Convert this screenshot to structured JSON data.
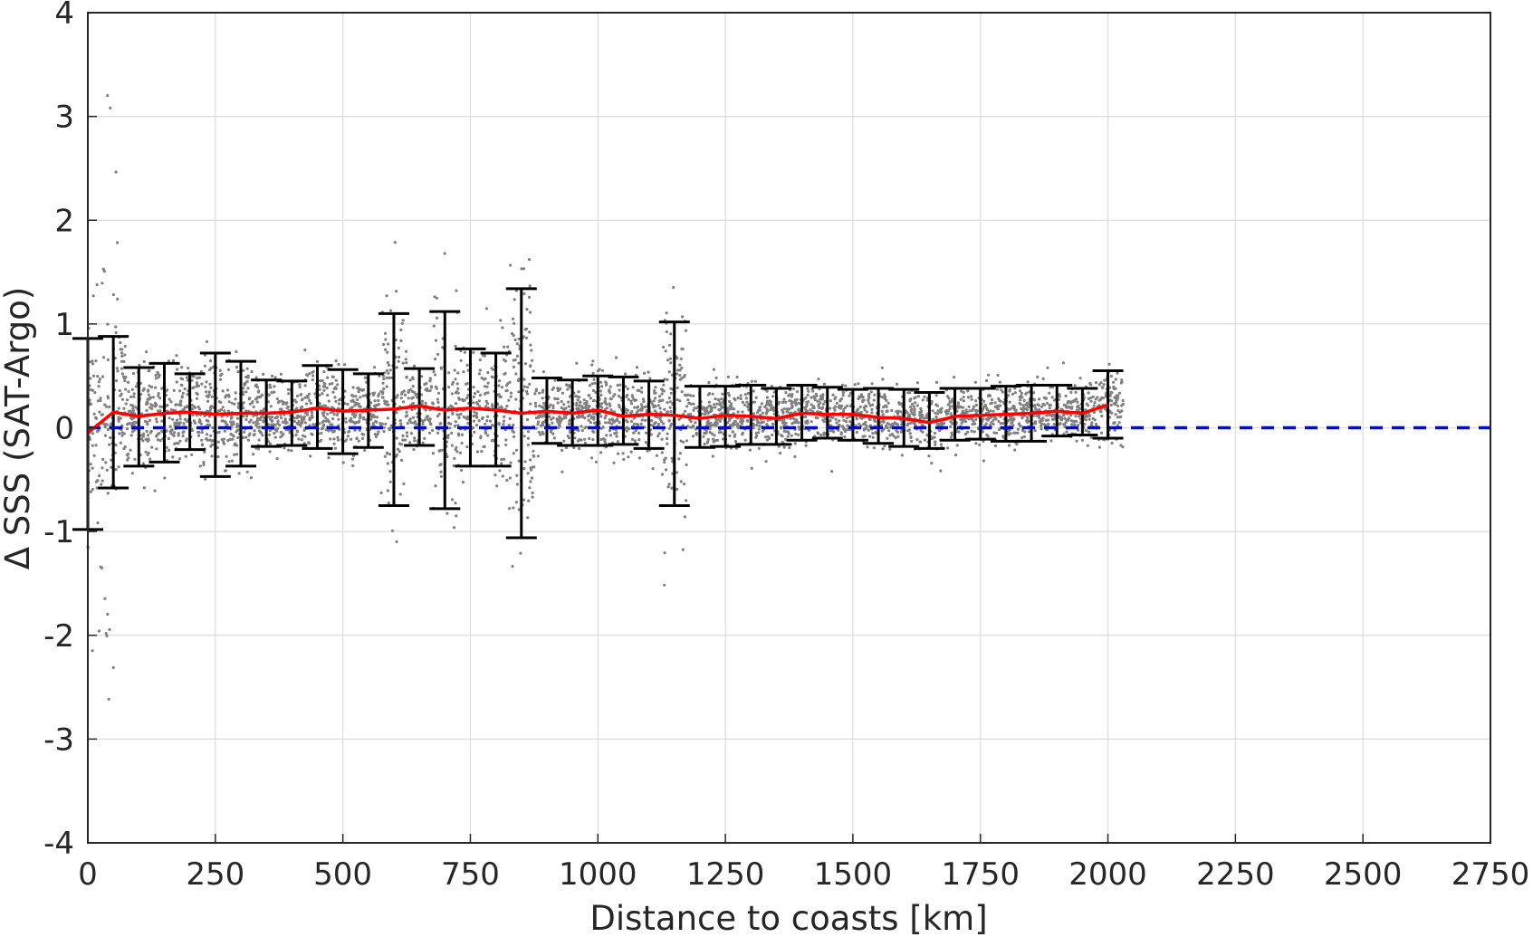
{
  "chart_data": {
    "type": "scatter",
    "xlabel": "Distance to coasts [km]",
    "ylabel": "Δ SSS (SAT-Argo)",
    "xlim": [
      0,
      2750
    ],
    "ylim": [
      -4,
      4
    ],
    "xticks": [
      0,
      250,
      500,
      750,
      1000,
      1250,
      1500,
      1750,
      2000,
      2250,
      2500,
      2750
    ],
    "yticks": [
      -4,
      -3,
      -2,
      -1,
      0,
      1,
      2,
      3,
      4
    ],
    "grid": true,
    "colors": {
      "scatter": "#808080",
      "mean_line": "#ff0000",
      "zero_line": "#0000ff",
      "error_bars": "#000000",
      "grid": "#dcdcdc",
      "axes": "#262626"
    },
    "reference_line": {
      "y": 0,
      "style": "dashed"
    },
    "bins": {
      "x": [
        0,
        50,
        100,
        150,
        200,
        250,
        300,
        350,
        400,
        450,
        500,
        550,
        600,
        650,
        700,
        750,
        800,
        850,
        900,
        950,
        1000,
        1050,
        1100,
        1150,
        1200,
        1250,
        1300,
        1350,
        1400,
        1450,
        1500,
        1550,
        1600,
        1650,
        1700,
        1750,
        1800,
        1850,
        1900,
        1950,
        2000
      ],
      "mean": [
        -0.05,
        0.15,
        0.11,
        0.14,
        0.15,
        0.13,
        0.14,
        0.14,
        0.15,
        0.19,
        0.16,
        0.17,
        0.18,
        0.21,
        0.17,
        0.19,
        0.17,
        0.14,
        0.16,
        0.14,
        0.17,
        0.11,
        0.13,
        0.12,
        0.09,
        0.12,
        0.11,
        0.09,
        0.14,
        0.13,
        0.13,
        0.1,
        0.09,
        0.05,
        0.11,
        0.12,
        0.13,
        0.14,
        0.16,
        0.14,
        0.22
      ],
      "upper": [
        0.86,
        0.88,
        0.58,
        0.62,
        0.52,
        0.72,
        0.64,
        0.46,
        0.45,
        0.6,
        0.56,
        0.52,
        1.1,
        0.57,
        1.12,
        0.76,
        0.72,
        1.34,
        0.48,
        0.46,
        0.5,
        0.49,
        0.45,
        1.02,
        0.4,
        0.4,
        0.41,
        0.38,
        0.41,
        0.39,
        0.37,
        0.38,
        0.37,
        0.34,
        0.38,
        0.38,
        0.4,
        0.41,
        0.41,
        0.38,
        0.55
      ],
      "lower": [
        -0.98,
        -0.58,
        -0.37,
        -0.33,
        -0.21,
        -0.47,
        -0.37,
        -0.18,
        -0.17,
        -0.2,
        -0.25,
        -0.19,
        -0.75,
        -0.17,
        -0.78,
        -0.37,
        -0.37,
        -1.06,
        -0.15,
        -0.17,
        -0.17,
        -0.16,
        -0.2,
        -0.75,
        -0.19,
        -0.18,
        -0.16,
        -0.16,
        -0.12,
        -0.1,
        -0.12,
        -0.15,
        -0.18,
        -0.2,
        -0.12,
        -0.11,
        -0.13,
        -0.13,
        -0.08,
        -0.07,
        -0.1
      ]
    }
  }
}
